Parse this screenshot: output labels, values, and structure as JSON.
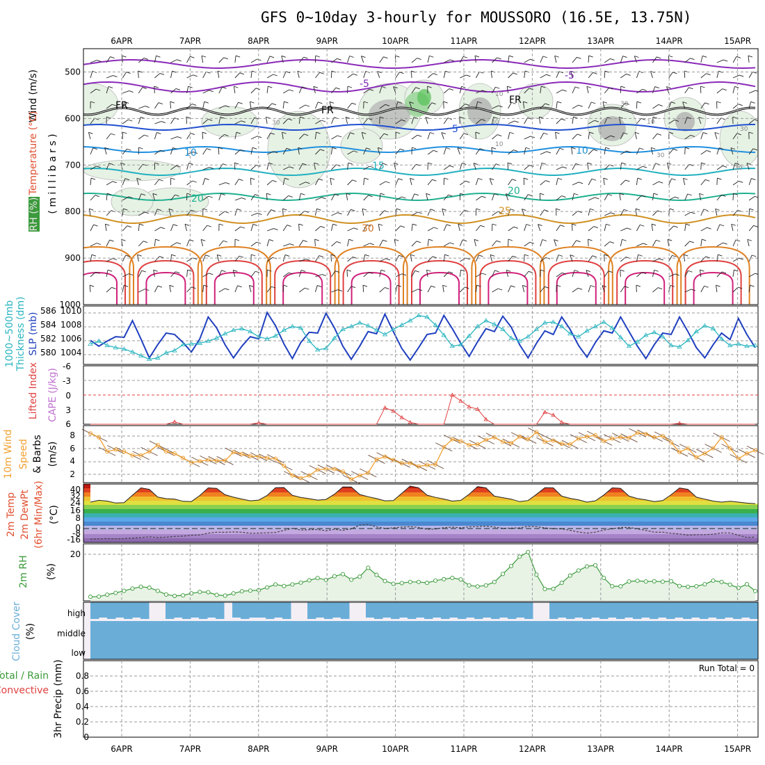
{
  "title": "GFS 0~10day 3-hourly for MOUSSORO (16.5E, 13.75N)",
  "dates": [
    "6APR",
    "7APR",
    "8APR",
    "9APR",
    "10APR",
    "11APR",
    "12APR",
    "13APR",
    "14APR",
    "15APR"
  ],
  "labels": {
    "wind": "Wind (m/s)",
    "temperature": "Temperature (°C)",
    "rh": "RH (%)",
    "millibars": "( m i l l i b a r s )",
    "thickness": "1000~500mb",
    "thickness2": "Thickness (dm)",
    "slp": "SLP (mb)",
    "lifted": "Lifted Index",
    "cape": "CAPE (J/kg)",
    "wind10": "10m Wind",
    "speed": "Speed",
    "barbs": "& Barbs",
    "ms": "(m/s)",
    "temp2m": "2m Temp",
    "dewpt": "2m DewPt",
    "minmax": "(6hr Min/Max)",
    "degc": "(°C)",
    "rh2m": "2m RH",
    "pct": "(%)",
    "cloud": "Cloud Cover",
    "cloud_pct": "(%)",
    "high": "high",
    "middle": "middle",
    "low": "low",
    "precip_total": "Total / Rain",
    "precip_conv": "Convective",
    "precip": "3hr Precip (mm)",
    "run_total": "Run Total = 0"
  },
  "colors": {
    "slp": "#1f3fbf",
    "thickness": "#2ab5c0",
    "lifted": "#e04040",
    "wind_speed": "#f0a030",
    "rh": "#3a9a3a",
    "cloud": "#6aaed8",
    "temp_neg": "#7a3aa8",
    "temp_blue": "#2050d0",
    "temp_teal": "#20b0c0"
  },
  "contour_labels": {
    "pressure_ticks": [
      "500",
      "600",
      "700",
      "800",
      "900",
      "1000"
    ],
    "fr": [
      "FR",
      "FR",
      "FR"
    ],
    "temps": [
      "-5",
      "-5",
      "5",
      "10",
      "10",
      "15",
      "20",
      "20",
      "25",
      "30"
    ],
    "rh": [
      "30",
      "10",
      "30",
      "10",
      "30",
      "30",
      "10",
      "30",
      "30"
    ]
  },
  "chart_data": [
    {
      "type": "line",
      "name": "cross-section",
      "ylabel": "millibars",
      "ylim": [
        1000,
        450
      ],
      "yticks": [
        500,
        600,
        700,
        800,
        900,
        1000
      ]
    },
    {
      "type": "line",
      "name": "slp-thickness",
      "yticks_left": [
        "580",
        "582",
        "584",
        "586"
      ],
      "yticks_right": [
        "1004",
        "1006",
        "1008",
        "1010"
      ],
      "series": [
        {
          "name": "SLP (mb)",
          "ylim": [
            1002.5,
            1010.5
          ],
          "values": [
            1005.8,
            1005.0,
            1005.7,
            1006.3,
            1006.2,
            1008.5,
            1006.0,
            1003.4,
            1005.2,
            1006.8,
            1006.6,
            1005.5,
            1004.2,
            1006.0,
            1009.0,
            1007.5,
            1005.2,
            1003.4,
            1005.0,
            1006.3,
            1006.0,
            1009.6,
            1007.8,
            1005.3,
            1003.3,
            1005.5,
            1006.9,
            1006.8,
            1009.5,
            1007.5,
            1005.0,
            1003.2,
            1005.0,
            1007.0,
            1006.7,
            1009.4,
            1007.0,
            1004.7,
            1003.1,
            1004.8,
            1006.6,
            1006.8,
            1009.2,
            1007.4,
            1005.4,
            1003.6,
            1005.6,
            1007.4,
            1007.0,
            1009.1,
            1007.6,
            1005.2,
            1003.4,
            1005.4,
            1007.1,
            1006.6,
            1009.0,
            1007.3,
            1005.1,
            1003.5,
            1005.5,
            1007.1,
            1006.8,
            1009.0,
            1007.0,
            1005.0,
            1003.3,
            1005.2,
            1006.8,
            1006.6,
            1009.0,
            1007.0,
            1004.8,
            1003.4,
            1005.2,
            1006.8,
            1005.9,
            1008.8,
            1006.6,
            1004.8
          ]
        },
        {
          "name": "Thickness (dm)",
          "ylim": [
            578.8,
            586.8
          ],
          "values": [
            581.6,
            582.0,
            581.4,
            581.1,
            580.9,
            580.5,
            580.0,
            579.5,
            579.7,
            580.4,
            580.7,
            581.5,
            581.6,
            581.7,
            582.0,
            582.4,
            583.0,
            583.5,
            583.7,
            583.3,
            582.6,
            582.3,
            582.7,
            583.5,
            584.0,
            583.8,
            582.0,
            580.8,
            581.0,
            582.4,
            583.6,
            584.0,
            584.5,
            584.1,
            583.5,
            582.9,
            583.6,
            584.2,
            584.8,
            585.5,
            585.3,
            584.2,
            582.8,
            581.3,
            581.5,
            582.7,
            584.0,
            584.8,
            584.3,
            583.6,
            582.4,
            582.0,
            582.6,
            583.6,
            584.5,
            584.6,
            584.0,
            583.0,
            582.6,
            583.4,
            584.0,
            584.6,
            583.8,
            582.5,
            581.3,
            581.9,
            582.8,
            583.2,
            582.6,
            581.4,
            581.2,
            582.1,
            583.3,
            584.1,
            583.7,
            582.3,
            581.4,
            581.6,
            581.3,
            581.4
          ]
        }
      ]
    },
    {
      "type": "line",
      "name": "lifted-index",
      "yticks": [
        "-6",
        "-3",
        "0",
        "3",
        "6"
      ],
      "ylim": [
        6,
        -6
      ],
      "series": [
        {
          "name": "Lifted Index",
          "values": [
            6,
            6,
            6,
            6,
            6,
            6,
            6,
            6,
            6,
            6,
            5.5,
            6,
            6,
            6,
            6,
            6,
            6,
            6,
            6,
            6,
            5.7,
            6,
            6,
            6,
            6,
            6,
            6,
            6,
            6,
            6,
            6,
            6,
            6,
            6,
            6,
            2.6,
            3.3,
            4.6,
            5.6,
            6,
            6,
            6,
            6,
            0,
            1.2,
            2.4,
            2.9,
            5.0,
            6,
            6,
            6,
            6,
            6,
            6,
            3.5,
            4.1,
            5.6,
            6,
            6,
            6,
            6,
            6,
            6,
            6,
            6,
            6,
            6,
            6,
            6,
            6,
            5.8,
            6,
            6,
            6,
            6,
            6,
            6,
            6,
            6,
            6
          ]
        }
      ]
    },
    {
      "type": "line",
      "name": "10m-wind",
      "yticks": [
        "2",
        "4",
        "6",
        "8"
      ],
      "ylim": [
        0.5,
        9.3
      ],
      "series": [
        {
          "name": "Speed",
          "values": [
            8.1,
            7.5,
            5.3,
            5.6,
            5.3,
            4.7,
            4.7,
            5.3,
            6.3,
            5.3,
            5.0,
            4.3,
            3.6,
            3.8,
            4.0,
            3.9,
            3.9,
            5.2,
            4.9,
            4.6,
            4.5,
            4.3,
            4.2,
            3.1,
            1.6,
            1.2,
            1.6,
            2.5,
            2.6,
            2.6,
            2.2,
            1.0,
            1.6,
            2.0,
            4.1,
            4.5,
            4.0,
            3.5,
            3.5,
            3.0,
            3.2,
            3.3,
            6.0,
            7.2,
            6.9,
            6.3,
            6.4,
            7.1,
            7.5,
            6.8,
            6.6,
            7.6,
            7.2,
            8.3,
            6.8,
            7.0,
            6.5,
            6.4,
            7.3,
            7.6,
            7.8,
            6.9,
            7.3,
            7.5,
            7.4,
            8.2,
            8.0,
            7.5,
            7.7,
            6.7,
            5.2,
            5.8,
            4.4,
            5.0,
            5.8,
            7.5,
            5.8,
            4.2,
            5.0,
            5.5
          ]
        }
      ]
    },
    {
      "type": "area",
      "name": "2m-temp",
      "yticks": [
        "40",
        "32",
        "24",
        "16",
        "8",
        "0",
        "-8",
        "-16"
      ],
      "ylim": [
        -16,
        44
      ],
      "series": [
        {
          "name": "2m Temp",
          "values": [
            25.4,
            27.3,
            26.5,
            24.5,
            24.9,
            32.6,
            40.1,
            38.6,
            30.6,
            29.0,
            28.6,
            26.3,
            26.0,
            32.2,
            40.1,
            39.6,
            33.0,
            30.5,
            28.6,
            26.8,
            27.5,
            32.3,
            40.3,
            40.4,
            32.4,
            30.3,
            29.0,
            27.5,
            28.2,
            33.6,
            41.1,
            41.0,
            33.3,
            31.0,
            29.1,
            26.8,
            27.0,
            34.4,
            41.9,
            40.2,
            32.6,
            30.3,
            28.6,
            26.5,
            27.2,
            33.6,
            41.4,
            40.1,
            31.6,
            30.0,
            28.5,
            25.9,
            27.1,
            33.4,
            40.2,
            40.1,
            31.6,
            29.3,
            27.7,
            25.4,
            26.8,
            32.7,
            40.1,
            39.6,
            31.6,
            29.1,
            27.7,
            26.0,
            27.0,
            33.0,
            40.0,
            38.6,
            30.5,
            28.5,
            26.5,
            25.4,
            26.3,
            25.4,
            24.4,
            23.8
          ]
        },
        {
          "name": "2m DewPt",
          "values": [
            -12.6,
            -12.3,
            -12.0,
            -12.3,
            -12.1,
            -11.4,
            -11.0,
            -10.2,
            -10.9,
            -10.6,
            -9.8,
            -9.5,
            -8.6,
            -8.3,
            -6.4,
            -5.5,
            -5.6,
            -5.2,
            -5.5,
            -6.6,
            -6.4,
            -6.1,
            -5.8,
            -3.6,
            -1.5,
            -3.3,
            -2.9,
            -2.7,
            -3.9,
            -2.5,
            -3.5,
            -2.1,
            1.8,
            2.5,
            0.0,
            -1.6,
            -1.0,
            -0.2,
            0.2,
            -0.5,
            -2.5,
            -2.2,
            -0.8,
            -0.2,
            -1.0,
            0.1,
            0.3,
            0.8,
            -0.2,
            -1.5,
            -1.3,
            -1.0,
            0.6,
            0.2,
            -1.0,
            -2.0,
            -2.1,
            -3.5,
            -5.3,
            -6.4,
            -5.4,
            -3.2,
            -2.0,
            -0.6,
            -0.6,
            -2.1,
            -3.6,
            -5.5,
            -5.4,
            -6.6,
            -7.3,
            -8.4,
            -8.0,
            -8.0,
            -7.5,
            -6.2,
            -6.2,
            -8.6,
            -10.8,
            -10.6
          ]
        }
      ]
    },
    {
      "type": "area",
      "name": "2m-rh",
      "yticks": [
        "20"
      ],
      "ylim": [
        0,
        25
      ],
      "series": [
        {
          "name": "2m RH",
          "values": [
            1.8,
            1.9,
            2.7,
            3.5,
            4.4,
            5.4,
            6.2,
            5.8,
            4.4,
            2.8,
            2.2,
            2.4,
            3.3,
            3.9,
            3.8,
            2.6,
            2.3,
            3.3,
            4.2,
            4.5,
            4.7,
            5.9,
            7.2,
            6.5,
            7.2,
            8.0,
            9.0,
            10.0,
            9.2,
            10.8,
            11.7,
            9.3,
            10.6,
            14.5,
            11.4,
            8.7,
            7.5,
            7.8,
            8.3,
            8.3,
            7.9,
            8.9,
            9.5,
            10.1,
            9.4,
            6.8,
            6.3,
            6.8,
            8.3,
            11.8,
            15.3,
            19.4,
            21.4,
            11.5,
            5.2,
            5.3,
            7.9,
            11.1,
            13.3,
            15.1,
            15.6,
            10.1,
            6.4,
            6.4,
            8.5,
            8.8,
            8.5,
            8.6,
            8.4,
            8.6,
            6.5,
            6.2,
            6.4,
            7.3,
            8.9,
            8.3,
            7.1,
            5.7,
            7.3,
            4.3
          ]
        }
      ]
    },
    {
      "type": "bar",
      "name": "cloud-cover",
      "yticks": [
        "high",
        "middle",
        "low"
      ]
    },
    {
      "type": "bar",
      "name": "3hr-precip",
      "ylabel": "3hr Precip (mm)",
      "yticks": [
        "0",
        "0.2",
        "0.4",
        "0.6",
        "0.8"
      ],
      "ylim": [
        0,
        1
      ]
    }
  ]
}
